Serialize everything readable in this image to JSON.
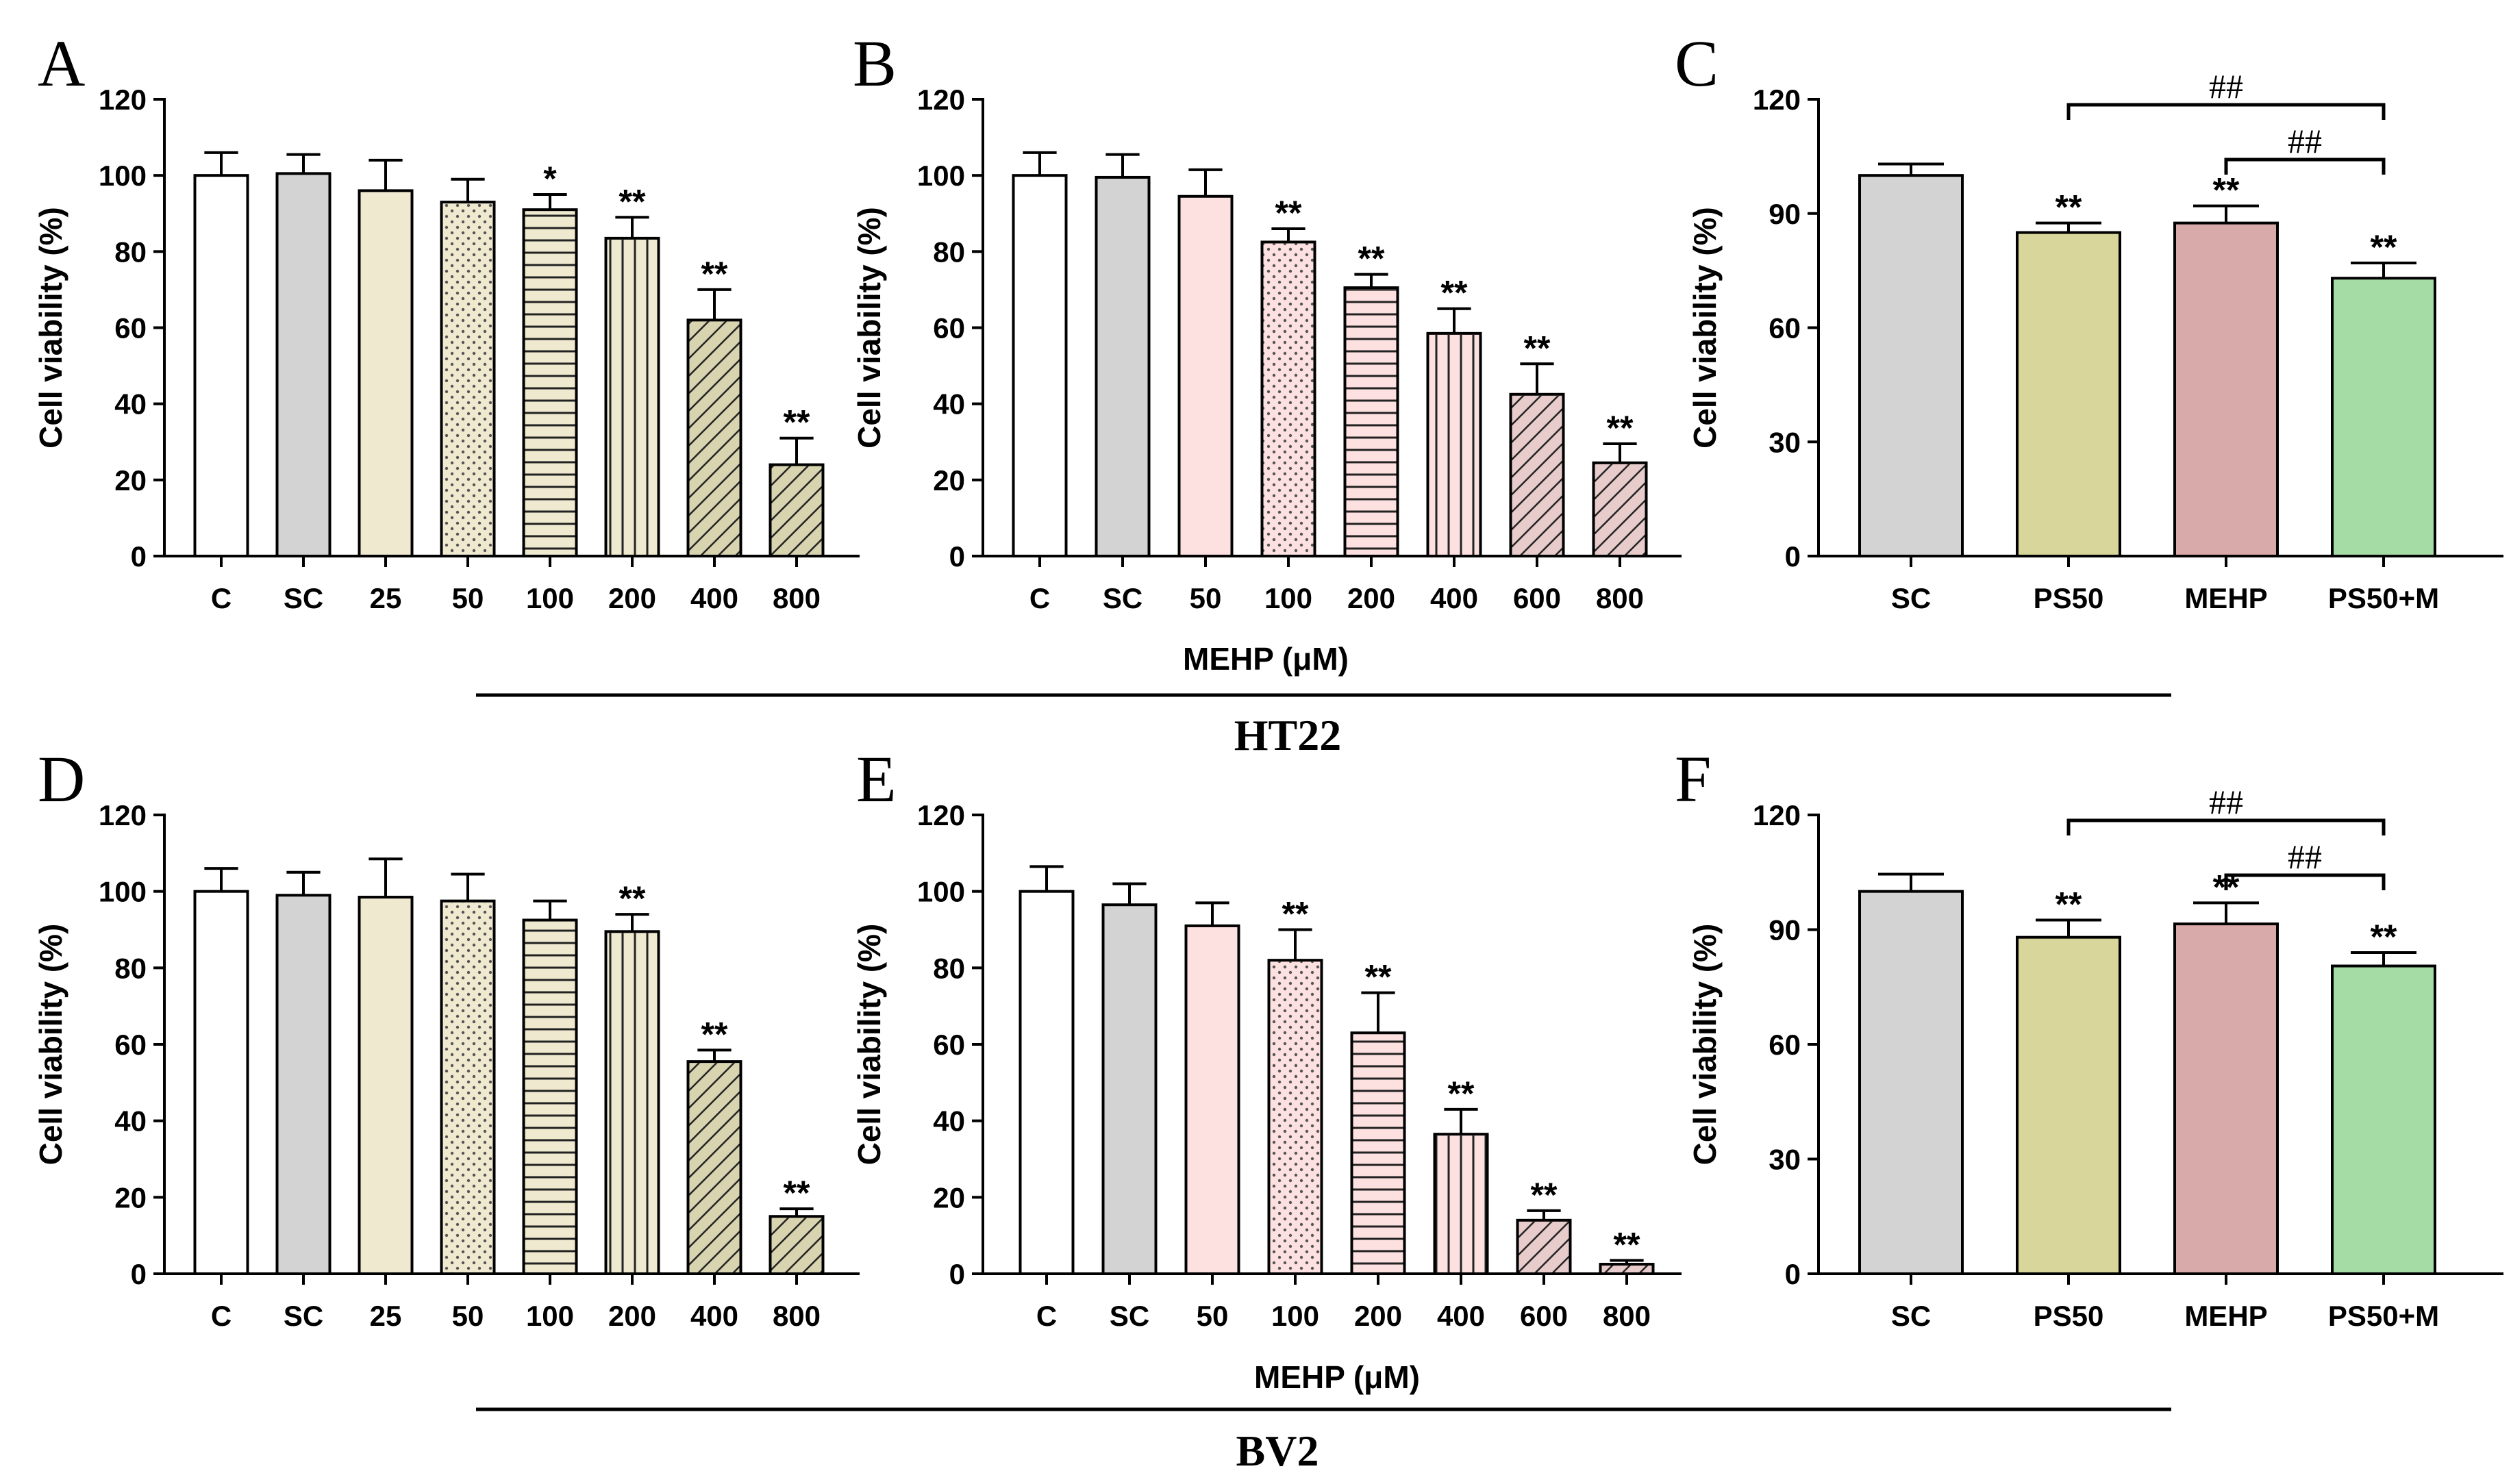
{
  "shared": {
    "xlabel_top": "MEHP (μM)",
    "xlabel_bottom": "MEHP (μM)",
    "group_top": "HT22",
    "group_bottom": "BV2"
  },
  "chart_data": [
    {
      "panel": "A",
      "type": "bar",
      "cell_line": "HT22",
      "ylabel": "Cell viability (%)",
      "ylim": [
        0,
        120
      ],
      "yticks": [
        0,
        20,
        40,
        60,
        80,
        100,
        120
      ],
      "categories": [
        "C",
        "SC",
        "25",
        "50",
        "100",
        "200",
        "400",
        "800"
      ],
      "values": [
        100,
        100.5,
        96,
        93,
        91,
        83.5,
        62,
        24
      ],
      "errors": [
        6,
        5,
        8,
        6,
        4,
        5.5,
        8,
        7
      ],
      "significance": [
        "",
        "",
        "",
        "",
        "*",
        "**",
        "**",
        "**"
      ],
      "fills": [
        "#ffffff",
        "#d3d3d3",
        "#efe9d0",
        "#efe9d0",
        "#efe9d0",
        "#efe9d0",
        "#d8d4b0",
        "#d8d4b0"
      ],
      "patterns": [
        "none",
        "none",
        "none",
        "dots",
        "hlines",
        "vlines",
        "diag",
        "diag"
      ]
    },
    {
      "panel": "B",
      "type": "bar",
      "cell_line": "HT22",
      "ylabel": "Cell viability (%)",
      "ylim": [
        0,
        120
      ],
      "yticks": [
        0,
        20,
        40,
        60,
        80,
        100,
        120
      ],
      "categories": [
        "C",
        "SC",
        "50",
        "100",
        "200",
        "400",
        "600",
        "800"
      ],
      "values": [
        100,
        99.5,
        94.5,
        82.5,
        70.5,
        58.5,
        42.5,
        24.5
      ],
      "errors": [
        6,
        6,
        7,
        3.5,
        3.5,
        6.5,
        8,
        5
      ],
      "significance": [
        "",
        "",
        "",
        "**",
        "**",
        "**",
        "**",
        "**"
      ],
      "fills": [
        "#ffffff",
        "#d3d3d3",
        "#fde0e0",
        "#fde0e0",
        "#fde0e0",
        "#fde0e0",
        "#e8cccc",
        "#e8cccc"
      ],
      "patterns": [
        "none",
        "none",
        "none",
        "dots",
        "hlines",
        "vlines",
        "diag",
        "diag"
      ]
    },
    {
      "panel": "C",
      "type": "bar",
      "cell_line": "HT22",
      "ylabel": "Cell viability (%)",
      "ylim": [
        0,
        120
      ],
      "yticks": [
        0,
        30,
        60,
        90,
        120
      ],
      "categories": [
        "SC",
        "PS50",
        "MEHP",
        "PS50+M"
      ],
      "values": [
        100,
        85,
        87.5,
        73
      ],
      "errors": [
        3,
        2.5,
        4.5,
        4
      ],
      "significance": [
        "",
        "**",
        "**",
        "**"
      ],
      "fills": [
        "#d3d3d3",
        "#d8d69a",
        "#d9aaaa",
        "#a5dca5"
      ],
      "patterns": [
        "none",
        "none",
        "none",
        "none"
      ],
      "comparisons": [
        {
          "from": 1,
          "to": 3,
          "label": "##"
        },
        {
          "from": 2,
          "to": 3,
          "label": "##"
        }
      ]
    },
    {
      "panel": "D",
      "type": "bar",
      "cell_line": "BV2",
      "ylabel": "Cell viability (%)",
      "ylim": [
        0,
        120
      ],
      "yticks": [
        0,
        20,
        40,
        60,
        80,
        100,
        120
      ],
      "categories": [
        "C",
        "SC",
        "25",
        "50",
        "100",
        "200",
        "400",
        "800"
      ],
      "values": [
        100,
        99,
        98.5,
        97.5,
        92.5,
        89.5,
        55.5,
        15
      ],
      "errors": [
        6,
        6,
        10,
        7,
        5,
        4.5,
        3,
        2
      ],
      "significance": [
        "",
        "",
        "",
        "",
        "",
        "**",
        "**",
        "**"
      ],
      "fills": [
        "#ffffff",
        "#d3d3d3",
        "#efe9d0",
        "#efe9d0",
        "#efe9d0",
        "#efe9d0",
        "#d8d4b0",
        "#d8d4b0"
      ],
      "patterns": [
        "none",
        "none",
        "none",
        "dots",
        "hlines",
        "vlines",
        "diag",
        "diag"
      ]
    },
    {
      "panel": "E",
      "type": "bar",
      "cell_line": "BV2",
      "ylabel": "Cell viability (%)",
      "ylim": [
        0,
        120
      ],
      "yticks": [
        0,
        20,
        40,
        60,
        80,
        100,
        120
      ],
      "categories": [
        "C",
        "SC",
        "50",
        "100",
        "200",
        "400",
        "600",
        "800"
      ],
      "values": [
        100,
        96.5,
        91,
        82,
        63,
        36.5,
        14,
        2.5
      ],
      "errors": [
        6.5,
        5.5,
        6,
        8,
        10.5,
        6.5,
        2.5,
        1
      ],
      "significance": [
        "",
        "",
        "",
        "**",
        "**",
        "**",
        "**",
        "**"
      ],
      "fills": [
        "#ffffff",
        "#d3d3d3",
        "#fde0e0",
        "#fde0e0",
        "#fde0e0",
        "#fde0e0",
        "#e8cccc",
        "#e8cccc"
      ],
      "patterns": [
        "none",
        "none",
        "none",
        "dots",
        "hlines",
        "vlines",
        "diag",
        "diag"
      ]
    },
    {
      "panel": "F",
      "type": "bar",
      "cell_line": "BV2",
      "ylabel": "Cell viability (%)",
      "ylim": [
        0,
        120
      ],
      "yticks": [
        0,
        30,
        60,
        90,
        120
      ],
      "categories": [
        "SC",
        "PS50",
        "MEHP",
        "PS50+M"
      ],
      "values": [
        100,
        88,
        91.5,
        80.5
      ],
      "errors": [
        4.5,
        4.5,
        5.5,
        3.5
      ],
      "significance": [
        "",
        "**",
        "**",
        "**"
      ],
      "fills": [
        "#d3d3d3",
        "#d8d69a",
        "#d9aaaa",
        "#a5dca5"
      ],
      "patterns": [
        "none",
        "none",
        "none",
        "none"
      ],
      "comparisons": [
        {
          "from": 1,
          "to": 3,
          "label": "##"
        },
        {
          "from": 2,
          "to": 3,
          "label": "##"
        }
      ]
    }
  ]
}
